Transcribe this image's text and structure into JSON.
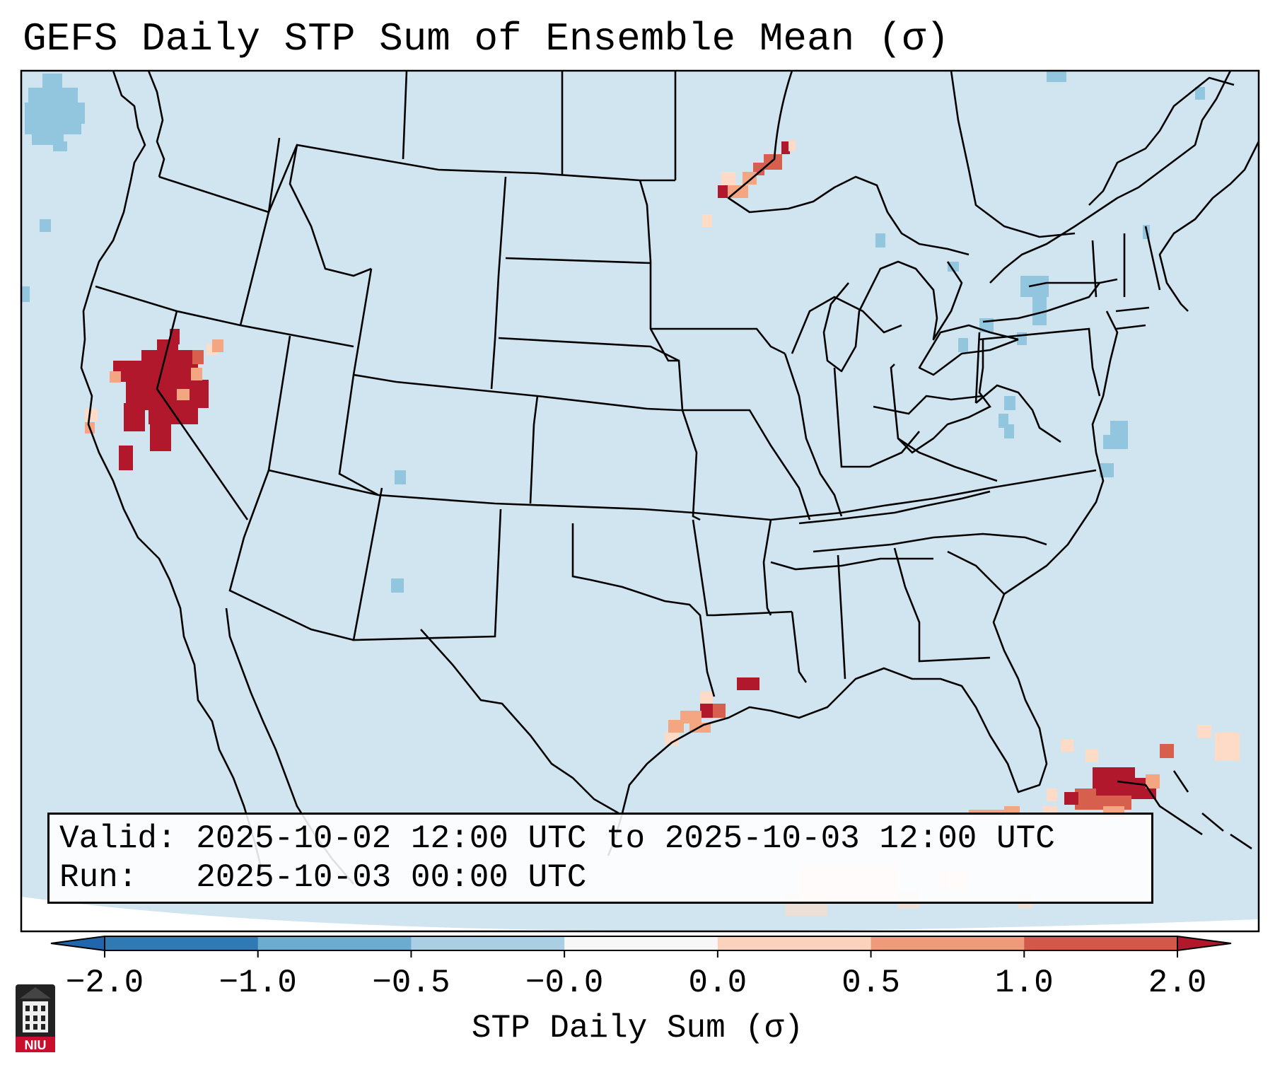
{
  "title": "GEFS Daily STP Sum of Ensemble Mean (σ)",
  "info": {
    "valid": "Valid: 2025-10-02 12:00 UTC to 2025-10-03 12:00 UTC",
    "run": "Run:   2025-10-03 00:00 UTC"
  },
  "colorbar": {
    "label": "STP Daily Sum (σ)",
    "ticks": [
      "−2.0",
      "−1.0",
      "−0.5",
      "−0.0",
      "0.0",
      "0.5",
      "1.0",
      "2.0"
    ],
    "colors": [
      "#2f79b5",
      "#6cacd1",
      "#aacfe5",
      "#f7f7f7",
      "#fbd3bd",
      "#ef9b7a",
      "#d25849"
    ],
    "extend_low": "#2166ac",
    "extend_high": "#b2182b"
  },
  "map": {
    "background": "#d1e5f0",
    "outside": "#ffffff",
    "border_color": "#000000"
  },
  "logo": {
    "text": "NIU",
    "color": "#c8102e"
  }
}
